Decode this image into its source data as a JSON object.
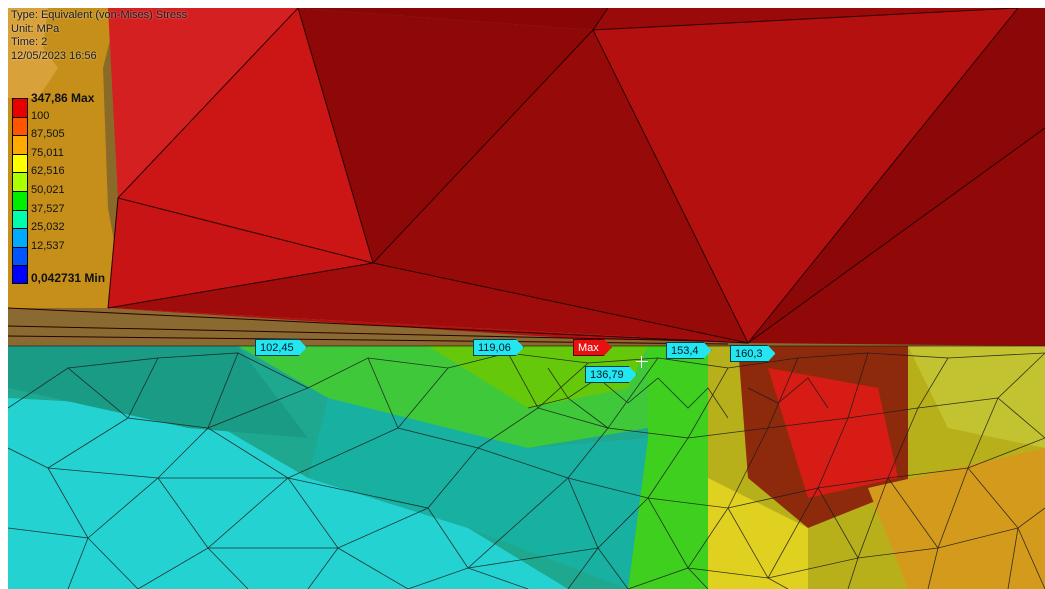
{
  "result_header": {
    "type": "Type: Equivalent (von-Mises) Stress",
    "unit": "Unit: MPa",
    "time": "Time: 2",
    "date": "12/05/2023 16:56"
  },
  "legend": {
    "entries": [
      {
        "label": "347,86 Max",
        "color": "#e80000",
        "bold": true
      },
      {
        "label": "100",
        "color": "#ff5500"
      },
      {
        "label": "87,505",
        "color": "#ffaa00"
      },
      {
        "label": "75,011",
        "color": "#ffff00"
      },
      {
        "label": "62,516",
        "color": "#aaff00"
      },
      {
        "label": "50,021",
        "color": "#00ee00"
      },
      {
        "label": "37,527",
        "color": "#00ffaa"
      },
      {
        "label": "25,032",
        "color": "#00aaff"
      },
      {
        "label": "12,537",
        "color": "#0055ff"
      },
      {
        "label": "0,042731 Min",
        "color": "#0000ff",
        "bold": true
      }
    ]
  },
  "probes": [
    {
      "name": "probe-102",
      "label": "102,45"
    },
    {
      "name": "probe-119",
      "label": "119,06"
    },
    {
      "name": "probe-max",
      "label": "Max"
    },
    {
      "name": "probe-136",
      "label": "136,79"
    },
    {
      "name": "probe-153",
      "label": "153,4"
    },
    {
      "name": "probe-160",
      "label": "160,3"
    }
  ]
}
